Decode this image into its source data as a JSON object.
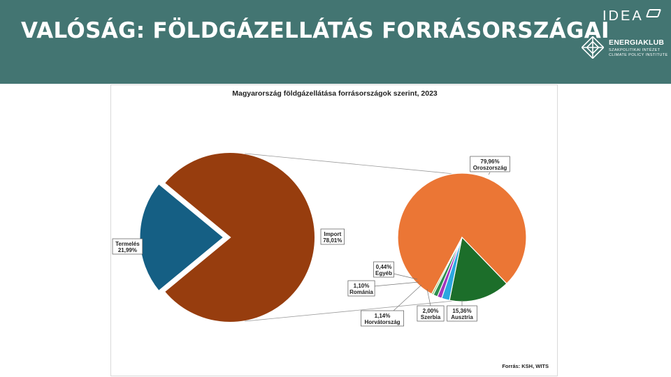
{
  "slide": {
    "title": "VALÓSÁG: FÖLDGÁZELLÁTÁS FORRÁSORSZÁGAI",
    "header_color": "#437572"
  },
  "logos": {
    "idea": "IDEA",
    "energiaklub_name": "ENERGIAKLUB",
    "energiaklub_sub1": "SZAKPOLITIKAI INTÉZET",
    "energiaklub_sub2": "CLIMATE POLICY INSTITUTE"
  },
  "chart_data": {
    "type": "pie",
    "title": "Magyarország földgázellátása forrásországok szerint, 2023",
    "source": "Forrás: KSH, WITS",
    "main_pie": {
      "slices": [
        {
          "name": "Import",
          "value": 78.01,
          "label": "78,01%",
          "color": "#973D0E"
        },
        {
          "name": "Termelés",
          "value": 21.99,
          "label": "21,99%",
          "color": "#155F84"
        }
      ]
    },
    "breakdown_pie": {
      "of": "Import",
      "slices": [
        {
          "name": "Oroszország",
          "value": 79.96,
          "label": "79,96%",
          "color": "#EB7635"
        },
        {
          "name": "Ausztria",
          "value": 15.36,
          "label": "15,36%",
          "color": "#1C6E2A"
        },
        {
          "name": "Szerbia",
          "value": 2.0,
          "label": "2,00%",
          "color": "#2BA7E0"
        },
        {
          "name": "Horvátország",
          "value": 1.14,
          "label": "1,14%",
          "color": "#A335BE"
        },
        {
          "name": "Románia",
          "value": 1.1,
          "label": "1,10%",
          "color": "#2E8F4E"
        },
        {
          "name": "Egyéb",
          "value": 0.44,
          "label": "0,44%",
          "color": "#8FC96A"
        }
      ]
    },
    "legend": "none"
  }
}
